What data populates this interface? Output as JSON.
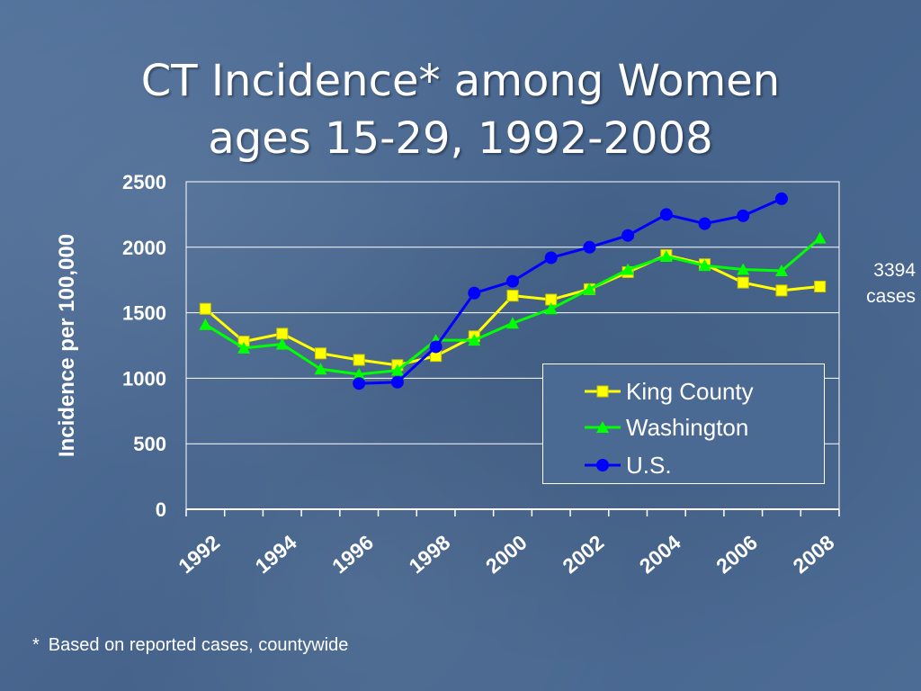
{
  "title": {
    "line1": "CT Incidence* among Women",
    "line2": "ages 15-29, 1992-2008"
  },
  "footnote": {
    "marker": "*",
    "text": "Based on reported cases, countywide"
  },
  "annotation": {
    "line1": "3394",
    "line2": "cases"
  },
  "chart_data": {
    "type": "line",
    "ylabel": "Incidence per 100,000",
    "xlabel": "",
    "ylim": [
      0,
      2500
    ],
    "yticks": [
      0,
      500,
      1000,
      1500,
      2000,
      2500
    ],
    "grid": true,
    "legend_position": "bottom-right",
    "x": [
      1992,
      1993,
      1994,
      1995,
      1996,
      1997,
      1998,
      1999,
      2000,
      2001,
      2002,
      2003,
      2004,
      2005,
      2006,
      2007,
      2008
    ],
    "xtick_labels": [
      "1992",
      "1994",
      "1996",
      "1998",
      "2000",
      "2002",
      "2004",
      "2006",
      "2008"
    ],
    "series": [
      {
        "name": "King County",
        "color": "#ffff00",
        "marker": "square",
        "values": [
          1530,
          1280,
          1340,
          1190,
          1140,
          1100,
          1170,
          1320,
          1630,
          1600,
          1680,
          1810,
          1940,
          1870,
          1730,
          1670,
          1700
        ]
      },
      {
        "name": "Washington",
        "color": "#00ff00",
        "marker": "triangle",
        "values": [
          1410,
          1230,
          1260,
          1070,
          1030,
          1060,
          1290,
          1290,
          1420,
          1530,
          1680,
          1830,
          1930,
          1860,
          1830,
          1820,
          2070
        ]
      },
      {
        "name": "U.S.",
        "color": "#0000ff",
        "marker": "circle",
        "values": [
          null,
          null,
          null,
          null,
          960,
          970,
          1240,
          1650,
          1740,
          1920,
          2000,
          2090,
          2250,
          2180,
          2240,
          2370,
          null
        ]
      }
    ]
  }
}
